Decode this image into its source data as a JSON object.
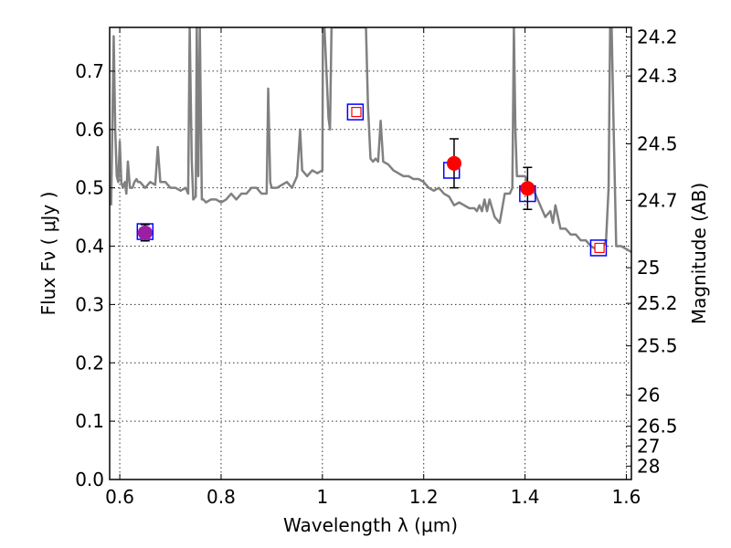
{
  "chart_data": {
    "type": "line",
    "title": "",
    "xlabel": "Wavelength  λ (μm)",
    "ylabel": "Flux  Fν  ( μJy )",
    "ylabel_right": "Magnitude (AB)",
    "xlim": [
      0.58,
      1.61
    ],
    "ylim": [
      0.0,
      0.775
    ],
    "grid": true,
    "x_ticks": [
      0.6,
      0.8,
      1.0,
      1.2,
      1.4,
      1.6
    ],
    "x_tick_labels": [
      "0.6",
      "0.8",
      "1",
      "1.2",
      "1.4",
      "1.6"
    ],
    "y_ticks": [
      0.0,
      0.1,
      0.2,
      0.3,
      0.4,
      0.5,
      0.6,
      0.7
    ],
    "y_tick_labels": [
      "0.0",
      "0.1",
      "0.2",
      "0.3",
      "0.4",
      "0.5",
      "0.6",
      "0.7"
    ],
    "mag_ticks": [
      {
        "label": "24.2",
        "flux": 0.7586
      },
      {
        "label": "24.3",
        "flux": 0.6918
      },
      {
        "label": "24.5",
        "flux": 0.5754
      },
      {
        "label": "24.7",
        "flux": 0.4786
      },
      {
        "label": "25",
        "flux": 0.3631
      },
      {
        "label": "25.2",
        "flux": 0.302
      },
      {
        "label": "25.5",
        "flux": 0.2291
      },
      {
        "label": "26",
        "flux": 0.1445
      },
      {
        "label": "26.5",
        "flux": 0.0912
      },
      {
        "label": "27",
        "flux": 0.0575
      },
      {
        "label": "28",
        "flux": 0.0229
      }
    ],
    "series": [
      {
        "color": "#808080",
        "x": [
          0.583,
          0.588,
          0.591,
          0.594,
          0.597,
          0.6,
          0.603,
          0.606,
          0.61,
          0.613,
          0.616,
          0.62,
          0.625,
          0.629,
          0.633,
          0.636,
          0.64,
          0.65,
          0.66,
          0.67,
          0.675,
          0.68,
          0.69,
          0.7,
          0.71,
          0.72,
          0.73,
          0.735,
          0.738,
          0.742,
          0.745,
          0.75,
          0.752,
          0.755,
          0.758,
          0.762,
          0.765,
          0.77,
          0.78,
          0.79,
          0.8,
          0.81,
          0.82,
          0.83,
          0.84,
          0.85,
          0.86,
          0.87,
          0.88,
          0.89,
          0.893,
          0.897,
          0.9,
          0.91,
          0.92,
          0.93,
          0.94,
          0.95,
          0.956,
          0.96,
          0.97,
          0.98,
          0.99,
          1.0,
          1.001,
          1.004,
          1.008,
          1.012,
          1.015,
          1.018,
          1.022,
          1.025,
          1.03,
          1.035,
          1.04,
          1.045,
          1.05,
          1.06,
          1.07,
          1.078,
          1.082,
          1.086,
          1.09,
          1.095,
          1.1,
          1.105,
          1.11,
          1.115,
          1.12,
          1.13,
          1.14,
          1.15,
          1.16,
          1.17,
          1.18,
          1.19,
          1.2,
          1.21,
          1.22,
          1.23,
          1.24,
          1.25,
          1.26,
          1.27,
          1.28,
          1.29,
          1.3,
          1.305,
          1.31,
          1.315,
          1.32,
          1.325,
          1.33,
          1.34,
          1.35,
          1.36,
          1.37,
          1.375,
          1.378,
          1.381,
          1.384,
          1.39,
          1.4,
          1.41,
          1.42,
          1.43,
          1.44,
          1.45,
          1.455,
          1.46,
          1.47,
          1.48,
          1.49,
          1.5,
          1.51,
          1.52,
          1.53,
          1.54,
          1.55,
          1.555,
          1.56,
          1.565,
          1.568,
          1.571,
          1.575,
          1.58,
          1.59,
          1.6,
          1.61
        ],
        "y": [
          0.47,
          0.76,
          0.6,
          0.52,
          0.51,
          0.58,
          0.51,
          0.5,
          0.51,
          0.49,
          0.545,
          0.5,
          0.5,
          0.51,
          0.515,
          0.51,
          0.51,
          0.5,
          0.51,
          0.505,
          0.57,
          0.51,
          0.51,
          0.5,
          0.5,
          0.495,
          0.5,
          0.49,
          0.775,
          0.55,
          0.48,
          0.485,
          0.775,
          0.52,
          0.775,
          0.48,
          0.48,
          0.475,
          0.48,
          0.48,
          0.475,
          0.48,
          0.49,
          0.48,
          0.49,
          0.49,
          0.5,
          0.5,
          0.49,
          0.49,
          0.67,
          0.51,
          0.5,
          0.5,
          0.505,
          0.51,
          0.5,
          0.52,
          0.6,
          0.53,
          0.52,
          0.53,
          0.525,
          0.53,
          0.775,
          0.775,
          0.7,
          0.62,
          0.6,
          0.775,
          0.775,
          0.775,
          0.775,
          0.775,
          0.775,
          0.775,
          0.775,
          0.775,
          0.775,
          0.775,
          0.775,
          0.775,
          0.64,
          0.55,
          0.545,
          0.55,
          0.545,
          0.615,
          0.545,
          0.54,
          0.53,
          0.525,
          0.52,
          0.52,
          0.515,
          0.515,
          0.51,
          0.5,
          0.495,
          0.5,
          0.49,
          0.485,
          0.47,
          0.475,
          0.47,
          0.465,
          0.465,
          0.46,
          0.47,
          0.46,
          0.48,
          0.46,
          0.48,
          0.45,
          0.44,
          0.49,
          0.49,
          0.5,
          0.775,
          0.6,
          0.52,
          0.52,
          0.52,
          0.5,
          0.49,
          0.47,
          0.45,
          0.46,
          0.44,
          0.47,
          0.43,
          0.43,
          0.42,
          0.42,
          0.41,
          0.41,
          0.4,
          0.395,
          0.39,
          0.4,
          0.41,
          0.5,
          0.775,
          0.775,
          0.6,
          0.4,
          0.4,
          0.395,
          0.39
        ]
      }
    ],
    "model_boxes": [
      {
        "x": 0.65,
        "y": 0.425
      },
      {
        "x": 1.065,
        "y": 0.63
      },
      {
        "x": 1.255,
        "y": 0.53
      },
      {
        "x": 1.405,
        "y": 0.49
      },
      {
        "x": 1.545,
        "y": 0.397
      }
    ],
    "model_inner_squares": [
      {
        "x": 1.067,
        "y": 0.63
      },
      {
        "x": 1.547,
        "y": 0.397
      }
    ],
    "observed_points": [
      {
        "x": 0.65,
        "y": 0.423,
        "err": 0.014,
        "color": "#9b1fa3"
      },
      {
        "x": 1.26,
        "y": 0.542,
        "err": 0.042,
        "color": "#ff0000"
      },
      {
        "x": 1.405,
        "y": 0.499,
        "err": 0.036,
        "color": "#ff0000"
      }
    ],
    "colors": {
      "spectrum": "#808080",
      "box": "#0000ff",
      "inner": "#ff0000",
      "point": "#ff0000",
      "errorbar": "#000000"
    }
  }
}
